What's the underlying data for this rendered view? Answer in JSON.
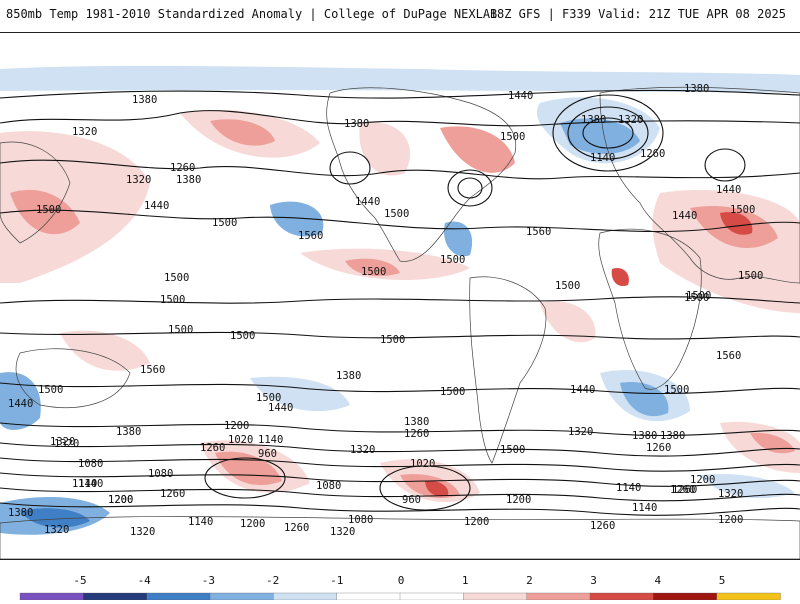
{
  "header": {
    "title": "850mb Temp 1981-2010 Standardized Anomaly | College of DuPage NEXLAB",
    "run_info": "18Z GFS | F339 Valid: 21Z TUE APR 08 2025"
  },
  "colors": {
    "neg5": "#7a4fbf",
    "neg4": "#243a7a",
    "neg3": "#3f7fc6",
    "neg2": "#7fb0e0",
    "neg1": "#cfe1f3",
    "zero": "#ffffff",
    "pos1": "#f7dad8",
    "pos2": "#ee9f9a",
    "pos3": "#d64b45",
    "pos4": "#9e1512",
    "pos5": "#f2c21a"
  },
  "colorbar": {
    "ticks": [
      "-5",
      "-4",
      "-3",
      "-2",
      "-1",
      "0",
      "1",
      "2",
      "3",
      "4",
      "5"
    ]
  },
  "contour_labels": [
    "1380",
    "1380",
    "1380",
    "1380",
    "1320",
    "1320",
    "1260",
    "1320",
    "1380",
    "1440",
    "1500",
    "1440",
    "1500",
    "1560",
    "1500",
    "1440",
    "1500",
    "1560",
    "1500",
    "1500",
    "1500",
    "1500",
    "1500",
    "1500",
    "1560",
    "1500",
    "1500",
    "1500",
    "1440",
    "1500",
    "1560",
    "1440",
    "1500",
    "1140",
    "1260",
    "1500",
    "1500",
    "1380",
    "1260",
    "1020",
    "1140",
    "960",
    "1080",
    "960",
    "1020",
    "1140",
    "1200",
    "1260",
    "1320",
    "1380",
    "1200",
    "1260",
    "1500",
    "1320",
    "1380",
    "1260",
    "1200",
    "1140",
    "1080",
    "1320",
    "1200",
    "1260",
    "1140",
    "1080",
    "1320",
    "1260",
    "1200",
    "1320",
    "1260",
    "1140",
    "1200",
    "1380",
    "1440",
    "1500",
    "1320",
    "1440",
    "1500",
    "1080",
    "1200",
    "1140",
    "1200",
    "1260",
    "1380",
    "1320",
    "1320",
    "1440",
    "1500",
    "1380"
  ]
}
